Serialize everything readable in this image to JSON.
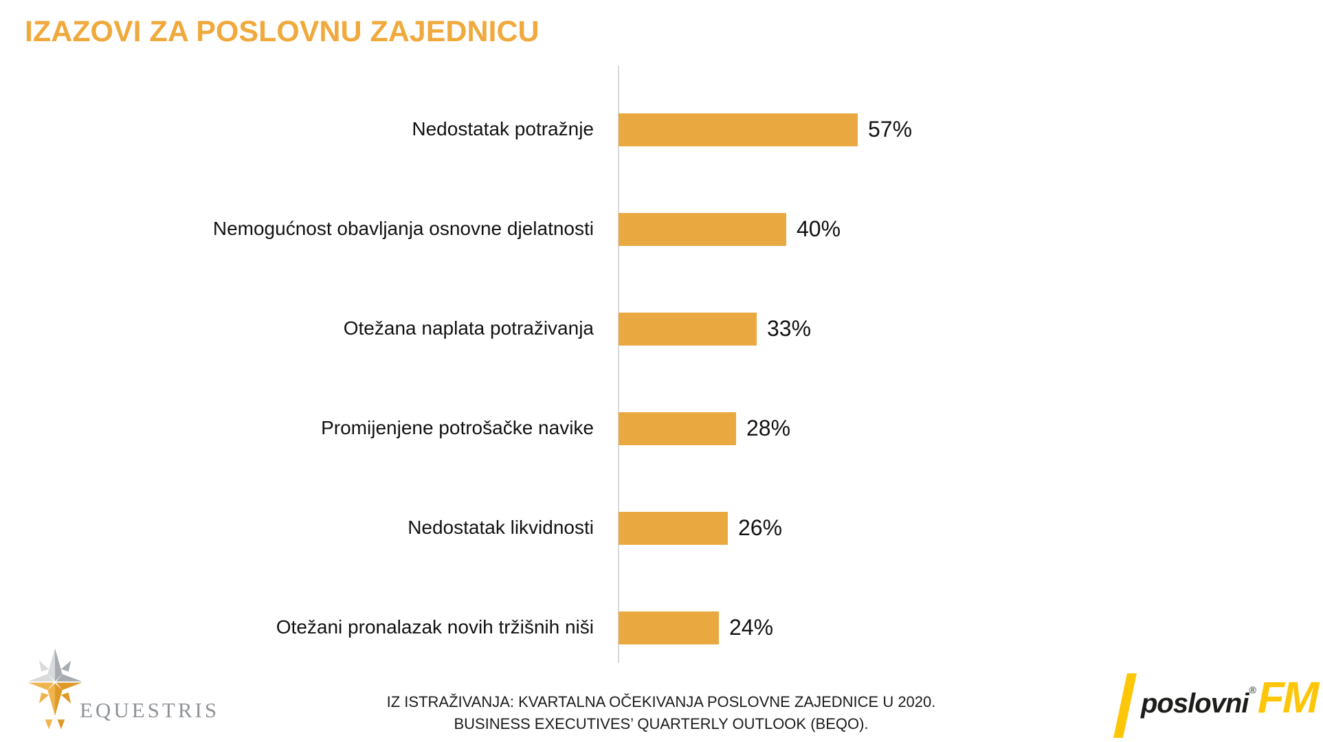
{
  "title": "IZAZOVI ZA POSLOVNU ZAJEDNICU",
  "chart_data": {
    "type": "bar",
    "orientation": "horizontal",
    "categories": [
      "Nedostatak potražnje",
      "Nemogućnost obavljanja osnovne djelatnosti",
      "Otežana naplata potraživanja",
      "Promijenjene potrošačke navike",
      "Nedostatak likvidnosti",
      "Otežani pronalazak novih tržišnih niši"
    ],
    "values": [
      57,
      40,
      33,
      28,
      26,
      24
    ],
    "value_labels": [
      "57%",
      "40%",
      "33%",
      "28%",
      "26%",
      "24%"
    ],
    "unit": "%",
    "xlim": [
      0,
      60
    ],
    "grid": false,
    "legend": false,
    "data_labels_position": "right",
    "bar_color": "#E9A940",
    "axis_line_color": "#D9D9D9"
  },
  "footer": {
    "line1": "IZ ISTRAŽIVANJA: KVARTALNA OČEKIVANJA POSLOVNE ZAJEDNICE U 2020.",
    "line2": "BUSINESS EXECUTIVES’ QUARTERLY OUTLOOK (BEQO)."
  },
  "logos": {
    "equestris": {
      "name": "EQUESTRIS",
      "text_color": "#8F9397",
      "silver_light": "#D8DADC",
      "silver_dark": "#A8ACB0",
      "gold_light": "#F0B44E",
      "gold_dark": "#DE9A28"
    },
    "poslovni_fm": {
      "word": "poslovni",
      "registered_mark": "®",
      "fm": "FM",
      "yellow": "#FDC608",
      "black": "#1D1D1B"
    }
  },
  "colors": {
    "title": "#F0A93C",
    "text": "#111111"
  }
}
